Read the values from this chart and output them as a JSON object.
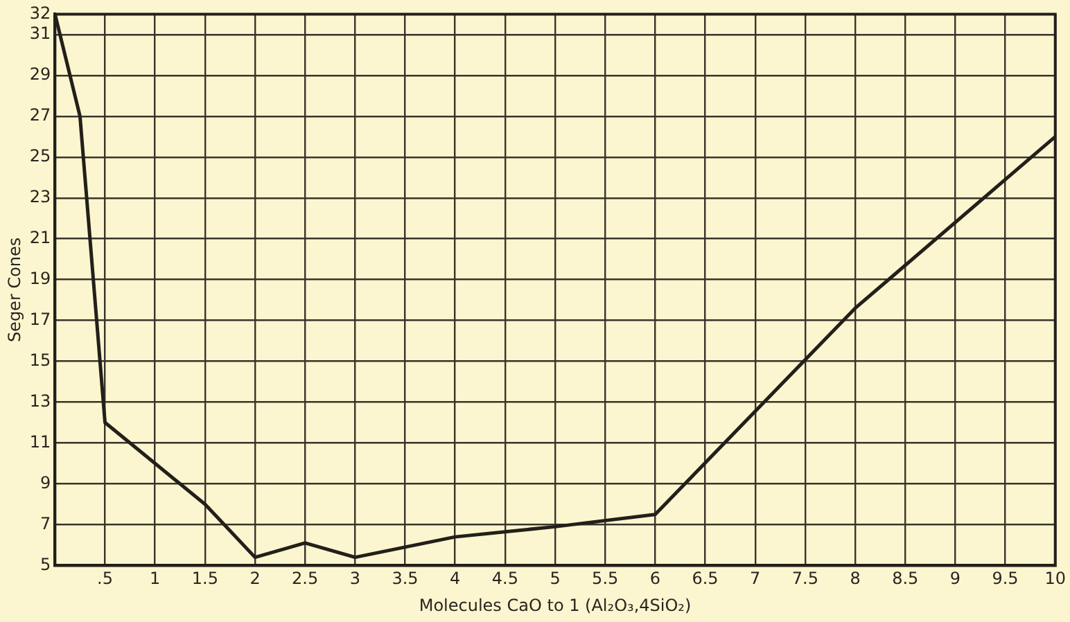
{
  "chart_data": {
    "type": "line",
    "xlabel": "Molecules CaO to 1 (Al₂O₃,4SiO₂)",
    "ylabel": "Seger Cones",
    "x": [
      0,
      0.25,
      0.5,
      1,
      1.5,
      2,
      2.5,
      3,
      4,
      5,
      6,
      8,
      10
    ],
    "series": [
      {
        "color": "#231f1a",
        "values": [
          32,
          27,
          12,
          10,
          8,
          5.4,
          6.1,
          5.4,
          6.4,
          6.9,
          7.5,
          17.6,
          26
        ]
      }
    ],
    "xlim": [
      0,
      10
    ],
    "xticks": [
      {
        "value": 0.5,
        "label": ".5"
      },
      1,
      1.5,
      2,
      2.5,
      3,
      3.5,
      4,
      4.5,
      5,
      5.5,
      6,
      6.5,
      7,
      7.5,
      8,
      8.5,
      9,
      9.5,
      10
    ],
    "ylim": [
      5,
      32
    ],
    "yticks": [
      5,
      7,
      9,
      11,
      13,
      15,
      17,
      19,
      21,
      23,
      25,
      27,
      29,
      31,
      32
    ],
    "grid": true,
    "legend": false,
    "marker": "none",
    "line_style": "solid"
  }
}
